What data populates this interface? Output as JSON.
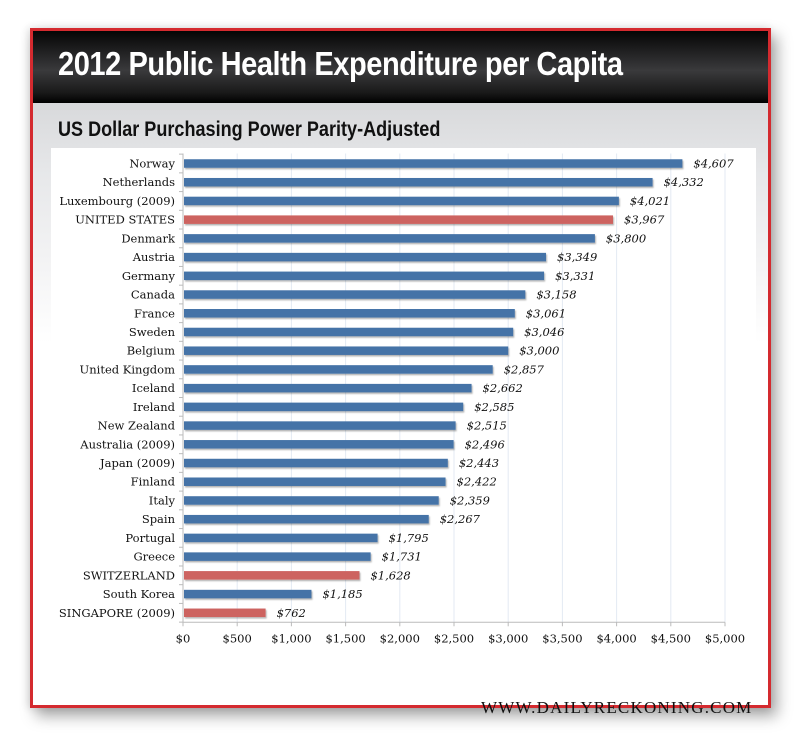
{
  "header": {
    "title": "2012 Public Health Expenditure per Capita",
    "subtitle": "US Dollar Purchasing Power Parity-Adjusted"
  },
  "footer": {
    "source": "WWW.DAILYRECKONING.COM"
  },
  "colors": {
    "frame_border": "#d42a2f",
    "bar_default": "#4573a7",
    "bar_highlight": "#cd6360",
    "grid": "#e3eaf3"
  },
  "chart_data": {
    "type": "bar",
    "orientation": "horizontal",
    "title": "2012 Public Health Expenditure per Capita",
    "subtitle": "US Dollar Purchasing Power Parity-Adjusted",
    "xlabel": "",
    "ylabel": "",
    "xlim": [
      0,
      5000
    ],
    "grid": true,
    "legend": "none",
    "x_ticks": [
      0,
      500,
      1000,
      1500,
      2000,
      2500,
      3000,
      3500,
      4000,
      4500,
      5000
    ],
    "x_tick_labels": [
      "$0",
      "$500",
      "$1,000",
      "$1,500",
      "$2,000",
      "$2,500",
      "$3,000",
      "$3,500",
      "$4,000",
      "$4,500",
      "$5,000"
    ],
    "categories": [
      "Norway",
      "Netherlands",
      "Luxembourg (2009)",
      "UNITED STATES",
      "Denmark",
      "Austria",
      "Germany",
      "Canada",
      "France",
      "Sweden",
      "Belgium",
      "United Kingdom",
      "Iceland",
      "Ireland",
      "New Zealand",
      "Australia (2009)",
      "Japan (2009)",
      "Finland",
      "Italy",
      "Spain",
      "Portugal",
      "Greece",
      "SWITZERLAND",
      "South Korea",
      "SINGAPORE (2009)"
    ],
    "values": [
      4607,
      4332,
      4021,
      3967,
      3800,
      3349,
      3331,
      3158,
      3061,
      3046,
      3000,
      2857,
      2662,
      2585,
      2515,
      2496,
      2443,
      2422,
      2359,
      2267,
      1795,
      1731,
      1628,
      1185,
      762
    ],
    "value_labels": [
      "$4,607",
      "$4,332",
      "$4,021",
      "$3,967",
      "$3,800",
      "$3,349",
      "$3,331",
      "$3,158",
      "$3,061",
      "$3,046",
      "$3,000",
      "$2,857",
      "$2,662",
      "$2,585",
      "$2,515",
      "$2,496",
      "$2,443",
      "$2,422",
      "$2,359",
      "$2,267",
      "$1,795",
      "$1,731",
      "$1,628",
      "$1,185",
      "$762"
    ],
    "highlighted": [
      "UNITED STATES",
      "SWITZERLAND",
      "SINGAPORE (2009)"
    ]
  }
}
